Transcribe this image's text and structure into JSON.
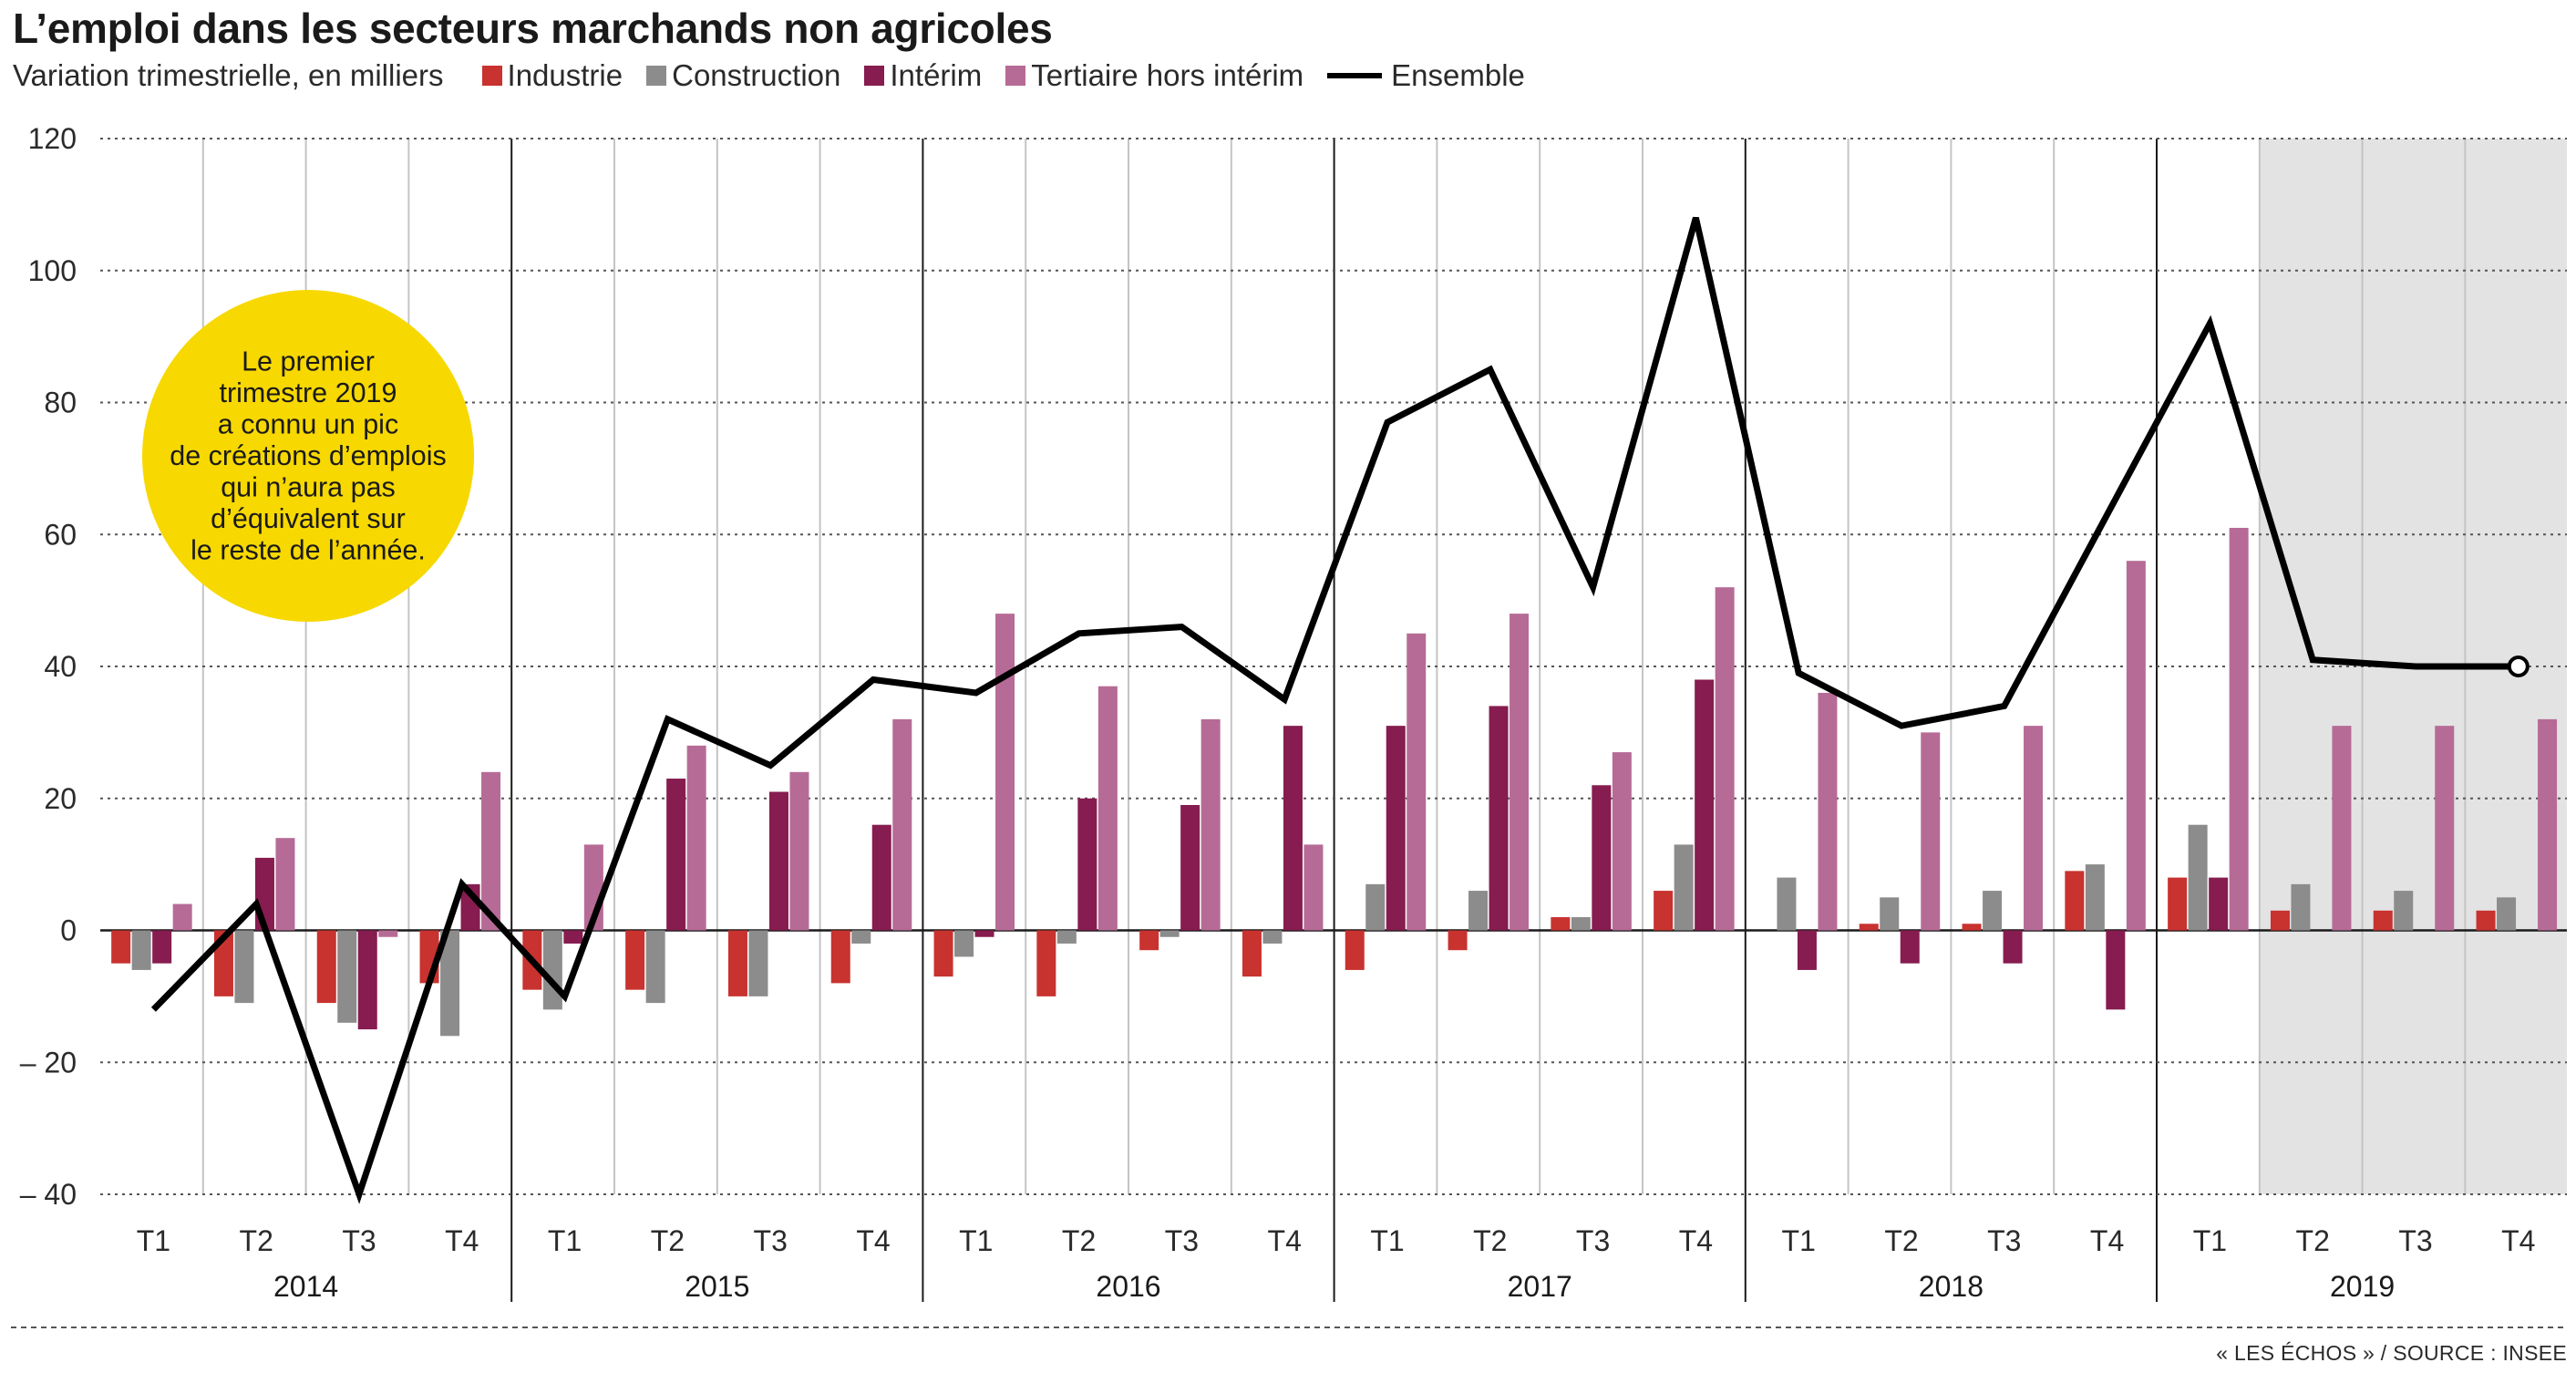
{
  "title": "L’emploi dans les secteurs marchands non agricoles",
  "subtitle": "Variation trimestrielle, en milliers",
  "source": "« LES ÉCHOS » / SOURCE : INSEE",
  "callout": {
    "lines": [
      "Le premier",
      "trimestre 2019",
      "a connu un pic",
      "de créations d’emplois",
      "qui n’aura pas",
      "d’équivalent sur",
      "le reste de l’année."
    ],
    "color": "#f7d800"
  },
  "colors": {
    "Industrie": "#c8322f",
    "Construction": "#8c8c8c",
    "Intérim": "#861c4f",
    "Tertiaire hors intérim": "#b66b96",
    "Ensemble": "#000000",
    "forecast_bg": "#e3e3e3"
  },
  "chart_data": {
    "type": "bar",
    "title": "L’emploi dans les secteurs marchands non agricoles",
    "ylabel": "",
    "xlabel": "",
    "ylim": [
      -40,
      120
    ],
    "yticks": [
      120,
      100,
      80,
      60,
      40,
      20,
      0,
      -20,
      -40
    ],
    "ytick_labels": [
      "120",
      "100",
      "80",
      "60",
      "40",
      "20",
      "0",
      "– 20",
      "– 40"
    ],
    "grid": true,
    "legend": "top",
    "quarters": [
      "T1",
      "T2",
      "T3",
      "T4"
    ],
    "years": [
      "2014",
      "2015",
      "2016",
      "2017",
      "2018",
      "2019"
    ],
    "forecast_from": "2019 T2",
    "series": [
      {
        "name": "Industrie",
        "type": "bar",
        "values": [
          -5,
          -10,
          -11,
          -8,
          -9,
          -9,
          -10,
          -8,
          -7,
          -10,
          -3,
          -7,
          -6,
          -3,
          2,
          6,
          0,
          1,
          1,
          9,
          8,
          3,
          3,
          3
        ]
      },
      {
        "name": "Construction",
        "type": "bar",
        "values": [
          -6,
          -11,
          -14,
          -16,
          -12,
          -11,
          -10,
          -2,
          -4,
          -2,
          -1,
          -2,
          7,
          6,
          2,
          13,
          8,
          5,
          6,
          10,
          16,
          7,
          6,
          5
        ]
      },
      {
        "name": "Intérim",
        "type": "bar",
        "values": [
          -5,
          11,
          -15,
          7,
          -2,
          23,
          21,
          16,
          -1,
          20,
          19,
          31,
          31,
          34,
          22,
          38,
          -6,
          -5,
          -5,
          -12,
          8,
          0,
          0,
          0
        ]
      },
      {
        "name": "Tertiaire hors intérim",
        "type": "bar",
        "values": [
          4,
          14,
          -1,
          24,
          13,
          28,
          24,
          32,
          48,
          37,
          32,
          13,
          45,
          48,
          27,
          52,
          36,
          30,
          31,
          56,
          61,
          31,
          31,
          32
        ]
      },
      {
        "name": "Ensemble",
        "type": "line",
        "values": [
          -12,
          4,
          -40,
          7,
          -10,
          32,
          25,
          38,
          36,
          45,
          46,
          35,
          77,
          85,
          52,
          108,
          39,
          31,
          34,
          63,
          92,
          41,
          40,
          40
        ]
      }
    ]
  }
}
